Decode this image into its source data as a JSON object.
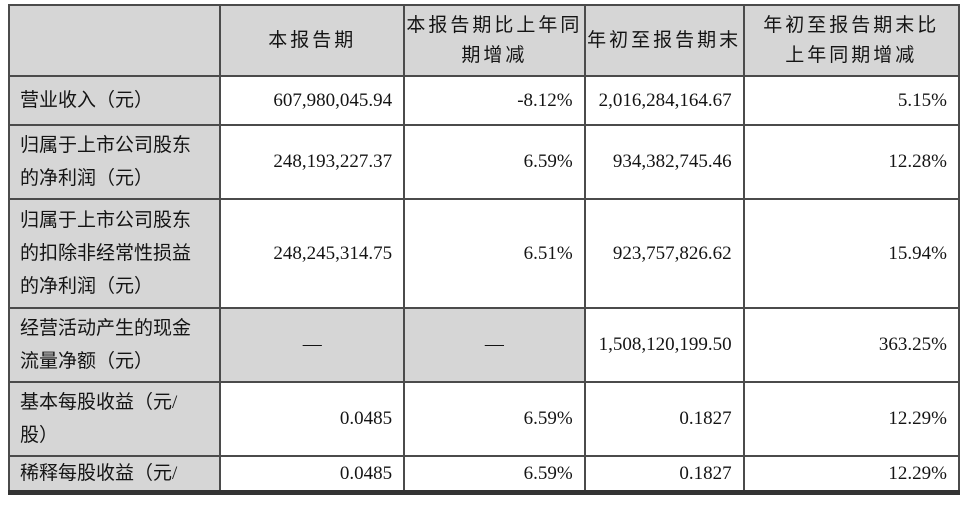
{
  "table": {
    "headers": [
      "",
      "本报告期",
      "本报告期比上年同\n期增减",
      "年初至报告期末",
      "年初至报告期末比\n上年同期增减"
    ],
    "rows": [
      {
        "label": "营业收入（元）",
        "values": [
          "607,980,045.94",
          "-8.12%",
          "2,016,284,164.67",
          "5.15%"
        ]
      },
      {
        "label": "归属于上市公司股东\n的净利润（元）",
        "values": [
          "248,193,227.37",
          "6.59%",
          "934,382,745.46",
          "12.28%"
        ]
      },
      {
        "label": "归属于上市公司股东\n的扣除非经常性损益\n的净利润（元）",
        "values": [
          "248,245,314.75",
          "6.51%",
          "923,757,826.62",
          "15.94%"
        ]
      },
      {
        "label": "经营活动产生的现金\n流量净额（元）",
        "values": [
          "—",
          "—",
          "1,508,120,199.50",
          "363.25%"
        ]
      },
      {
        "label": "基本每股收益（元/\n股）",
        "values": [
          "0.0485",
          "6.59%",
          "0.1827",
          "12.29%"
        ]
      },
      {
        "label": "稀释每股收益（元/",
        "values": [
          "0.0485",
          "6.59%",
          "0.1827",
          "12.29%"
        ]
      }
    ],
    "colors": {
      "cell_fill": "#d6d6d6",
      "border": "#4b4b4b",
      "text": "#141414",
      "bottom_rule": "#333333"
    }
  }
}
